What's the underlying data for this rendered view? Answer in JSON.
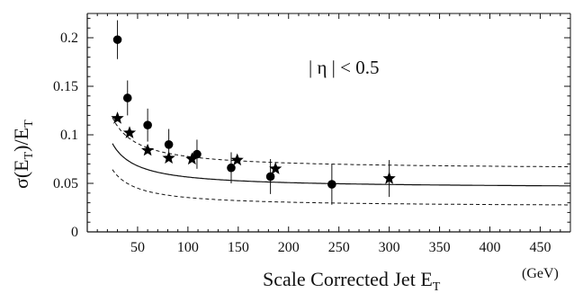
{
  "chart_data": {
    "type": "scatter",
    "title": "",
    "xlabel": "Scale Corrected Jet E",
    "xlabel_sub": "T",
    "x_unit": "(GeV)",
    "ylabel_prefix": "σ(E",
    "ylabel_sub1": "T",
    "ylabel_mid": ")/E",
    "ylabel_sub2": "T",
    "annotation": "| η | < 0.5",
    "xlim": [
      0,
      480
    ],
    "ylim": [
      0,
      0.225
    ],
    "x_ticks": [
      50,
      100,
      150,
      200,
      250,
      300,
      350,
      400,
      450
    ],
    "x_tick_labels": [
      "50",
      "100",
      "150",
      "200",
      "250",
      "300",
      "350",
      "400",
      "450"
    ],
    "y_ticks": [
      0,
      0.05,
      0.1,
      0.15,
      0.2
    ],
    "y_tick_labels": [
      "0",
      "0.05",
      "0.1",
      "0.15",
      "0.2"
    ],
    "grid": false,
    "series": [
      {
        "marker": "circle",
        "x": [
          30,
          40,
          60,
          81,
          109,
          143,
          182,
          243
        ],
        "y": [
          0.198,
          0.138,
          0.11,
          0.09,
          0.08,
          0.066,
          0.057,
          0.049
        ],
        "err": [
          0.02,
          0.018,
          0.017,
          0.016,
          0.015,
          0.016,
          0.018,
          0.021
        ]
      },
      {
        "marker": "star",
        "x": [
          30,
          42,
          60,
          81,
          104,
          149,
          187,
          300
        ],
        "y": [
          0.117,
          0.102,
          0.084,
          0.076,
          0.075,
          0.074,
          0.065,
          0.055
        ],
        "err": [
          0,
          0,
          0,
          0,
          0,
          0,
          0,
          0.019
        ]
      }
    ],
    "fit_curves": [
      {
        "style": "solid",
        "a": 1.15,
        "c": 0.045
      },
      {
        "style": "dashed",
        "a": 1.34,
        "c": 0.0643
      },
      {
        "style": "dashed",
        "a": 0.96,
        "c": 0.0258
      }
    ]
  }
}
